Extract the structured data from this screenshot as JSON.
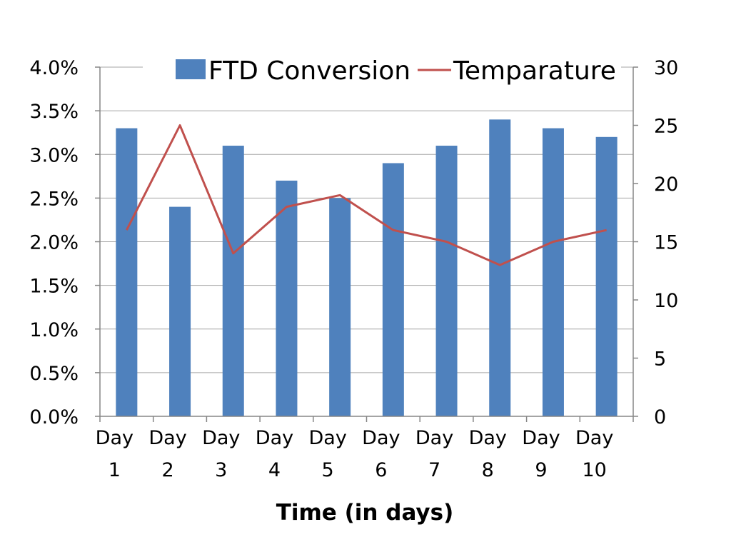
{
  "chart_data": {
    "type": "bar",
    "xlabel": "Time (in days)",
    "categories": [
      [
        "Day",
        "1"
      ],
      [
        "Day",
        "2"
      ],
      [
        "Day",
        "3"
      ],
      [
        "Day",
        "4"
      ],
      [
        "Day",
        "5"
      ],
      [
        "Day",
        "6"
      ],
      [
        "Day",
        "7"
      ],
      [
        "Day",
        "8"
      ],
      [
        "Day",
        "9"
      ],
      [
        "Day",
        "10"
      ]
    ],
    "series": [
      {
        "name": "FTD Conversion",
        "kind": "bar",
        "axis": "left",
        "color": "#4F81BD",
        "values": [
          3.3,
          2.4,
          3.1,
          2.7,
          2.5,
          2.9,
          3.1,
          3.4,
          3.3,
          3.2
        ]
      },
      {
        "name": "Temparature",
        "kind": "line",
        "axis": "right",
        "color": "#C0504D",
        "values": [
          16,
          25,
          14,
          18,
          19,
          16,
          15,
          13,
          15,
          16
        ]
      }
    ],
    "y_left": {
      "range": [
        0,
        4.0
      ],
      "ticks": [
        0,
        0.5,
        1.0,
        1.5,
        2.0,
        2.5,
        3.0,
        3.5,
        4.0
      ],
      "tick_labels": [
        "0.0%",
        "0.5%",
        "1.0%",
        "1.5%",
        "2.0%",
        "2.5%",
        "3.0%",
        "3.5%",
        "4.0%"
      ],
      "unit": "%"
    },
    "y_right": {
      "range": [
        0,
        30
      ],
      "ticks": [
        0,
        5,
        10,
        15,
        20,
        25,
        30
      ],
      "tick_labels": [
        "0",
        "5",
        "10",
        "15",
        "20",
        "25",
        "30"
      ]
    },
    "grid": true,
    "legend_position": "top"
  }
}
